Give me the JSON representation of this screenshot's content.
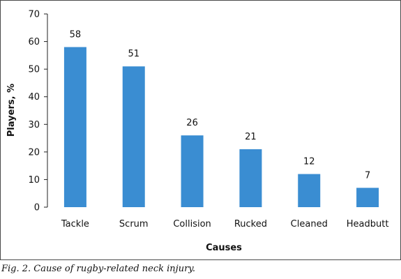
{
  "chart_data": {
    "type": "bar",
    "title": "",
    "xlabel": "Causes",
    "ylabel": "Players, %",
    "categories": [
      "Tackle",
      "Scrum",
      "Collision",
      "Rucked",
      "Cleaned",
      "Headbutt"
    ],
    "values": [
      58,
      51,
      26,
      21,
      12,
      7
    ],
    "data_labels": [
      "58",
      "51",
      "26",
      "21",
      "12",
      "7"
    ],
    "ylim": [
      0,
      70
    ],
    "yticks": [
      0,
      10,
      20,
      30,
      40,
      50,
      60,
      70
    ],
    "grid": false,
    "legend": "none",
    "bar_color": "#3a8dd2"
  },
  "caption": "Fig. 2. Cause of rugby-related neck injury."
}
